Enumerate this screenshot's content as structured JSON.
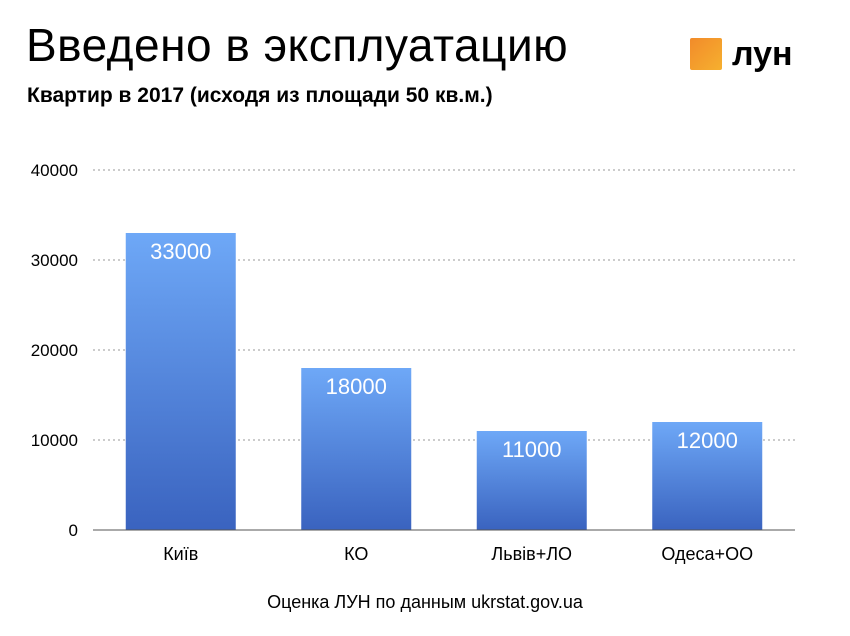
{
  "header": {
    "title": "Введено в эксплуатацию",
    "subtitle": "Квартир в 2017 (исходя из площади 50 кв.м.)"
  },
  "logo": {
    "text": "лун",
    "accent": "#f39c2c"
  },
  "footer": {
    "source": "Оценка ЛУН по данным ukrstat.gov.ua"
  },
  "chart_data": {
    "type": "bar",
    "categories": [
      "Київ",
      "КО",
      "Львів+ЛО",
      "Одеса+ОО"
    ],
    "values": [
      33000,
      18000,
      11000,
      12000
    ],
    "data_labels": [
      "33000",
      "18000",
      "11000",
      "12000"
    ],
    "yticks": [
      "0",
      "10000",
      "20000",
      "30000",
      "40000"
    ],
    "ylim": [
      0,
      40000
    ],
    "grid": true,
    "legend": "none",
    "bar_color_top": "#6ea8f7",
    "bar_color_bottom": "#3a63bf"
  }
}
